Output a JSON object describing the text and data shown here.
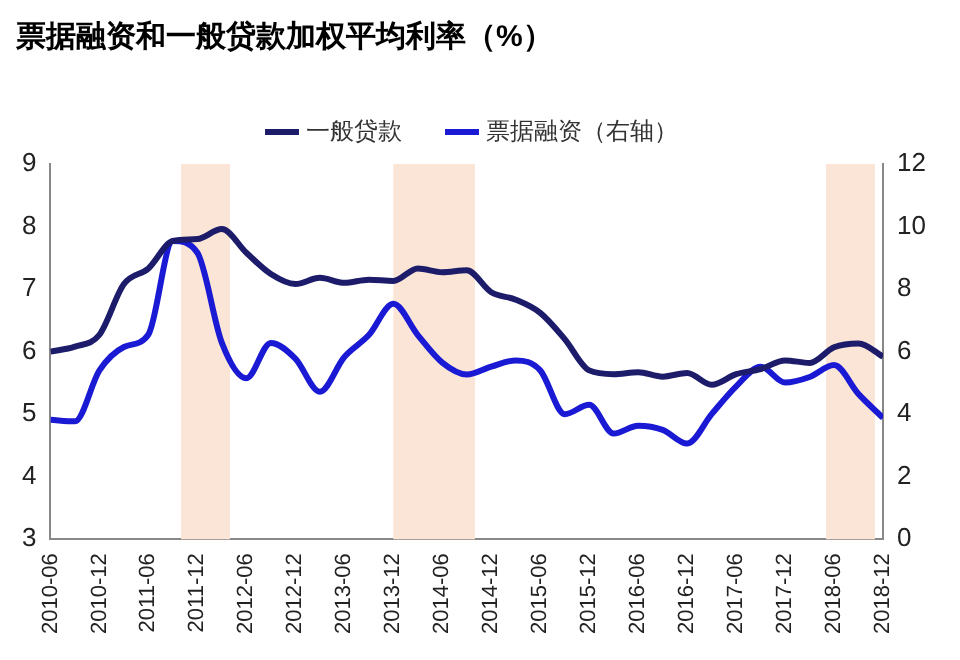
{
  "chart_data": {
    "type": "line",
    "title": "票据融资和一般贷款加权平均利率（%）",
    "x": [
      "2010-06",
      "2010-09",
      "2010-12",
      "2011-03",
      "2011-06",
      "2011-09",
      "2011-12",
      "2012-03",
      "2012-06",
      "2012-09",
      "2012-12",
      "2013-03",
      "2013-06",
      "2013-09",
      "2013-12",
      "2014-03",
      "2014-06",
      "2014-09",
      "2014-12",
      "2015-03",
      "2015-06",
      "2015-09",
      "2015-12",
      "2016-03",
      "2016-06",
      "2016-09",
      "2016-12",
      "2017-03",
      "2017-06",
      "2017-09",
      "2017-12",
      "2018-03",
      "2018-06",
      "2018-09",
      "2018-12"
    ],
    "series": [
      {
        "name": "一般贷款",
        "color": "#1c1c6b",
        "values": [
          6.0,
          6.08,
          6.27,
          7.08,
          7.33,
          7.77,
          7.8,
          7.96,
          7.58,
          7.24,
          7.08,
          7.18,
          7.1,
          7.15,
          7.13,
          7.33,
          7.27,
          7.3,
          6.95,
          6.83,
          6.62,
          6.2,
          5.7,
          5.64,
          5.67,
          5.6,
          5.66,
          5.47,
          5.64,
          5.72,
          5.86,
          5.82,
          6.07,
          6.13,
          5.92
        ]
      },
      {
        "name": "票据融资（右轴）",
        "color": "#1a1ad4",
        "axis": "y2",
        "values": [
          3.82,
          3.77,
          5.4,
          6.15,
          6.55,
          9.54,
          9.16,
          6.28,
          5.15,
          6.28,
          5.78,
          4.72,
          5.83,
          6.53,
          7.53,
          6.53,
          5.65,
          5.27,
          5.52,
          5.72,
          5.4,
          4.0,
          4.3,
          3.38,
          3.63,
          3.5,
          3.06,
          4.0,
          4.89,
          5.52,
          5.01,
          5.19,
          5.57,
          4.64,
          3.88
        ]
      }
    ],
    "xlim": [
      "2010-06",
      "2018-12"
    ],
    "xticks": [
      "2010-06",
      "2010-12",
      "2011-06",
      "2011-12",
      "2012-06",
      "2012-12",
      "2013-06",
      "2013-12",
      "2014-06",
      "2014-12",
      "2015-06",
      "2015-12",
      "2016-06",
      "2016-12",
      "2017-06",
      "2017-12",
      "2018-06",
      "2018-12"
    ],
    "ylim": [
      3,
      9
    ],
    "yticks": [
      3,
      4,
      5,
      6,
      7,
      8,
      9
    ],
    "y2lim": [
      0,
      12
    ],
    "y2ticks": [
      0,
      2,
      4,
      6,
      8,
      10,
      12
    ],
    "bands": [
      {
        "axis": "x",
        "from": "2011-10",
        "to": "2012-04",
        "color": "#fbe5d6"
      },
      {
        "axis": "x",
        "from": "2013-12",
        "to": "2014-10",
        "color": "#fbe5d6"
      },
      {
        "axis": "x",
        "from": "2018-05",
        "to": "2018-11",
        "color": "#fbe5d6"
      }
    ],
    "legend": "top",
    "grid": false,
    "marker": "none",
    "line_style": "solid"
  }
}
